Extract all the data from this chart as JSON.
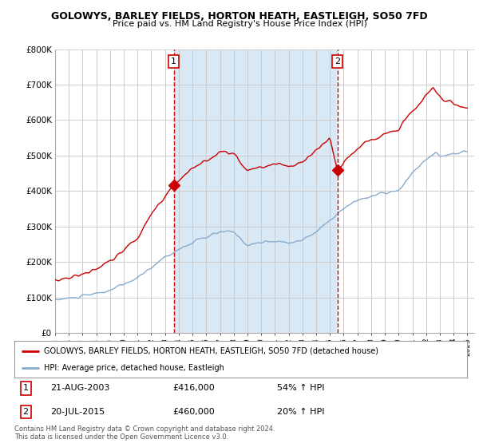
{
  "title": "GOLOWYS, BARLEY FIELDS, HORTON HEATH, EASTLEIGH, SO50 7FD",
  "subtitle": "Price paid vs. HM Land Registry's House Price Index (HPI)",
  "legend_line1": "GOLOWYS, BARLEY FIELDS, HORTON HEATH, EASTLEIGH, SO50 7FD (detached house)",
  "legend_line2": "HPI: Average price, detached house, Eastleigh",
  "footer1": "Contains HM Land Registry data © Crown copyright and database right 2024.",
  "footer2": "This data is licensed under the Open Government Licence v3.0.",
  "annotation1": {
    "num": "1",
    "date": "21-AUG-2003",
    "price": "£416,000",
    "pct": "54% ↑ HPI"
  },
  "annotation2": {
    "num": "2",
    "date": "20-JUL-2015",
    "price": "£460,000",
    "pct": "20% ↑ HPI"
  },
  "vline1_x": 2003.64,
  "vline2_x": 2015.55,
  "ylim": [
    0,
    800000
  ],
  "xlim_start": 1995.0,
  "xlim_end": 2025.5,
  "fig_bg_color": "#ffffff",
  "plot_bg_color": "#ffffff",
  "shade_color": "#d8e8f5",
  "red_line_color": "#cc0000",
  "blue_line_color": "#88aacc",
  "grid_color": "#cccccc",
  "sale1_x": 2003.64,
  "sale1_y": 416000,
  "sale2_x": 2015.55,
  "sale2_y": 460000,
  "hpi_x": [
    1995.0,
    1995.08,
    1995.17,
    1995.25,
    1995.33,
    1995.42,
    1995.5,
    1995.58,
    1995.67,
    1995.75,
    1995.83,
    1995.92,
    1996.0,
    1996.08,
    1996.17,
    1996.25,
    1996.33,
    1996.42,
    1996.5,
    1996.58,
    1996.67,
    1996.75,
    1996.83,
    1996.92,
    1997.0,
    1997.08,
    1997.17,
    1997.25,
    1997.33,
    1997.42,
    1997.5,
    1997.58,
    1997.67,
    1997.75,
    1997.83,
    1997.92,
    1998.0,
    1998.08,
    1998.17,
    1998.25,
    1998.33,
    1998.42,
    1998.5,
    1998.58,
    1998.67,
    1998.75,
    1998.83,
    1998.92,
    1999.0,
    1999.08,
    1999.17,
    1999.25,
    1999.33,
    1999.42,
    1999.5,
    1999.58,
    1999.67,
    1999.75,
    1999.83,
    1999.92,
    2000.0,
    2000.08,
    2000.17,
    2000.25,
    2000.33,
    2000.42,
    2000.5,
    2000.58,
    2000.67,
    2000.75,
    2000.83,
    2000.92,
    2001.0,
    2001.08,
    2001.17,
    2001.25,
    2001.33,
    2001.42,
    2001.5,
    2001.58,
    2001.67,
    2001.75,
    2001.83,
    2001.92,
    2002.0,
    2002.08,
    2002.17,
    2002.25,
    2002.33,
    2002.42,
    2002.5,
    2002.58,
    2002.67,
    2002.75,
    2002.83,
    2002.92,
    2003.0,
    2003.08,
    2003.17,
    2003.25,
    2003.33,
    2003.42,
    2003.5,
    2003.58,
    2003.67,
    2003.75,
    2003.83,
    2003.92,
    2004.0,
    2004.08,
    2004.17,
    2004.25,
    2004.33,
    2004.42,
    2004.5,
    2004.58,
    2004.67,
    2004.75,
    2004.83,
    2004.92,
    2005.0,
    2005.08,
    2005.17,
    2005.25,
    2005.33,
    2005.42,
    2005.5,
    2005.58,
    2005.67,
    2005.75,
    2005.83,
    2005.92,
    2006.0,
    2006.08,
    2006.17,
    2006.25,
    2006.33,
    2006.42,
    2006.5,
    2006.58,
    2006.67,
    2006.75,
    2006.83,
    2006.92,
    2007.0,
    2007.08,
    2007.17,
    2007.25,
    2007.33,
    2007.42,
    2007.5,
    2007.58,
    2007.67,
    2007.75,
    2007.83,
    2007.92,
    2008.0,
    2008.08,
    2008.17,
    2008.25,
    2008.33,
    2008.42,
    2008.5,
    2008.58,
    2008.67,
    2008.75,
    2008.83,
    2008.92,
    2009.0,
    2009.08,
    2009.17,
    2009.25,
    2009.33,
    2009.42,
    2009.5,
    2009.58,
    2009.67,
    2009.75,
    2009.83,
    2009.92,
    2010.0,
    2010.08,
    2010.17,
    2010.25,
    2010.33,
    2010.42,
    2010.5,
    2010.58,
    2010.67,
    2010.75,
    2010.83,
    2010.92,
    2011.0,
    2011.08,
    2011.17,
    2011.25,
    2011.33,
    2011.42,
    2011.5,
    2011.58,
    2011.67,
    2011.75,
    2011.83,
    2011.92,
    2012.0,
    2012.08,
    2012.17,
    2012.25,
    2012.33,
    2012.42,
    2012.5,
    2012.58,
    2012.67,
    2012.75,
    2012.83,
    2012.92,
    2013.0,
    2013.08,
    2013.17,
    2013.25,
    2013.33,
    2013.42,
    2013.5,
    2013.58,
    2013.67,
    2013.75,
    2013.83,
    2013.92,
    2014.0,
    2014.08,
    2014.17,
    2014.25,
    2014.33,
    2014.42,
    2014.5,
    2014.58,
    2014.67,
    2014.75,
    2014.83,
    2014.92,
    2015.0,
    2015.08,
    2015.17,
    2015.25,
    2015.33,
    2015.42,
    2015.5,
    2015.58,
    2015.67,
    2015.75,
    2015.83,
    2015.92,
    2016.0,
    2016.08,
    2016.17,
    2016.25,
    2016.33,
    2016.42,
    2016.5,
    2016.58,
    2016.67,
    2016.75,
    2016.83,
    2016.92,
    2017.0,
    2017.08,
    2017.17,
    2017.25,
    2017.33,
    2017.42,
    2017.5,
    2017.58,
    2017.67,
    2017.75,
    2017.83,
    2017.92,
    2018.0,
    2018.08,
    2018.17,
    2018.25,
    2018.33,
    2018.42,
    2018.5,
    2018.58,
    2018.67,
    2018.75,
    2018.83,
    2018.92,
    2019.0,
    2019.08,
    2019.17,
    2019.25,
    2019.33,
    2019.42,
    2019.5,
    2019.58,
    2019.67,
    2019.75,
    2019.83,
    2019.92,
    2020.0,
    2020.08,
    2020.17,
    2020.25,
    2020.33,
    2020.42,
    2020.5,
    2020.58,
    2020.67,
    2020.75,
    2020.83,
    2020.92,
    2021.0,
    2021.08,
    2021.17,
    2021.25,
    2021.33,
    2021.42,
    2021.5,
    2021.58,
    2021.67,
    2021.75,
    2021.83,
    2021.92,
    2022.0,
    2022.08,
    2022.17,
    2022.25,
    2022.33,
    2022.42,
    2022.5,
    2022.58,
    2022.67,
    2022.75,
    2022.83,
    2022.92,
    2023.0,
    2023.08,
    2023.17,
    2023.25,
    2023.33,
    2023.42,
    2023.5,
    2023.58,
    2023.67,
    2023.75,
    2023.83,
    2023.92,
    2024.0,
    2024.08,
    2024.17,
    2024.25,
    2024.33,
    2024.42,
    2024.5,
    2024.58,
    2024.67,
    2024.75,
    2024.83,
    2024.92,
    2025.0
  ],
  "prop_x": [
    1995.0,
    1995.08,
    1995.17,
    1995.25,
    1995.33,
    1995.42,
    1995.5,
    1995.58,
    1995.67,
    1995.75,
    1995.83,
    1995.92,
    1996.0,
    1996.08,
    1996.17,
    1996.25,
    1996.33,
    1996.42,
    1996.5,
    1996.58,
    1996.67,
    1996.75,
    1996.83,
    1996.92,
    1997.0,
    1997.08,
    1997.17,
    1997.25,
    1997.33,
    1997.42,
    1997.5,
    1997.58,
    1997.67,
    1997.75,
    1997.83,
    1997.92,
    1998.0,
    1998.08,
    1998.17,
    1998.25,
    1998.33,
    1998.42,
    1998.5,
    1998.58,
    1998.67,
    1998.75,
    1998.83,
    1998.92,
    1999.0,
    1999.08,
    1999.17,
    1999.25,
    1999.33,
    1999.42,
    1999.5,
    1999.58,
    1999.67,
    1999.75,
    1999.83,
    1999.92,
    2000.0,
    2000.08,
    2000.17,
    2000.25,
    2000.33,
    2000.42,
    2000.5,
    2000.58,
    2000.67,
    2000.75,
    2000.83,
    2000.92,
    2001.0,
    2001.08,
    2001.17,
    2001.25,
    2001.33,
    2001.42,
    2001.5,
    2001.58,
    2001.67,
    2001.75,
    2001.83,
    2001.92,
    2002.0,
    2002.08,
    2002.17,
    2002.25,
    2002.33,
    2002.42,
    2002.5,
    2002.58,
    2002.67,
    2002.75,
    2002.83,
    2002.92,
    2003.0,
    2003.08,
    2003.17,
    2003.25,
    2003.33,
    2003.42,
    2003.5,
    2003.58,
    2003.64,
    2015.55,
    2015.58,
    2015.67,
    2015.75,
    2015.83,
    2015.92,
    2016.0,
    2016.08,
    2016.17,
    2016.25,
    2016.33,
    2016.42,
    2016.5,
    2016.58,
    2016.67,
    2016.75,
    2016.83,
    2016.92,
    2017.0,
    2017.08,
    2017.17,
    2017.25,
    2017.33,
    2017.42,
    2017.5,
    2017.58,
    2017.67,
    2017.75,
    2017.83,
    2017.92,
    2018.0,
    2018.08,
    2018.17,
    2018.25,
    2018.33,
    2018.42,
    2018.5,
    2018.58,
    2018.67,
    2018.75,
    2018.83,
    2018.92,
    2019.0,
    2019.08,
    2019.17,
    2019.25,
    2019.33,
    2019.42,
    2019.5,
    2019.58,
    2019.67,
    2019.75,
    2019.83,
    2019.92,
    2020.0,
    2020.08,
    2020.17,
    2020.25,
    2020.33,
    2020.42,
    2020.5,
    2020.58,
    2020.67,
    2020.75,
    2020.83,
    2020.92,
    2021.0,
    2021.08,
    2021.17,
    2021.25,
    2021.33,
    2021.42,
    2021.5,
    2021.58,
    2021.67,
    2021.75,
    2021.83,
    2021.92,
    2022.0,
    2022.08,
    2022.17,
    2022.25,
    2022.33,
    2022.42,
    2022.5,
    2022.58,
    2022.67,
    2022.75,
    2022.83,
    2022.92,
    2023.0,
    2023.08,
    2023.17,
    2023.25,
    2023.33,
    2023.42,
    2023.5,
    2023.58,
    2023.67,
    2023.75,
    2023.83,
    2023.92,
    2024.0,
    2024.08,
    2024.17,
    2024.25,
    2024.33,
    2024.42,
    2024.5,
    2024.58,
    2024.67,
    2024.75,
    2024.83,
    2024.92,
    2025.0
  ]
}
